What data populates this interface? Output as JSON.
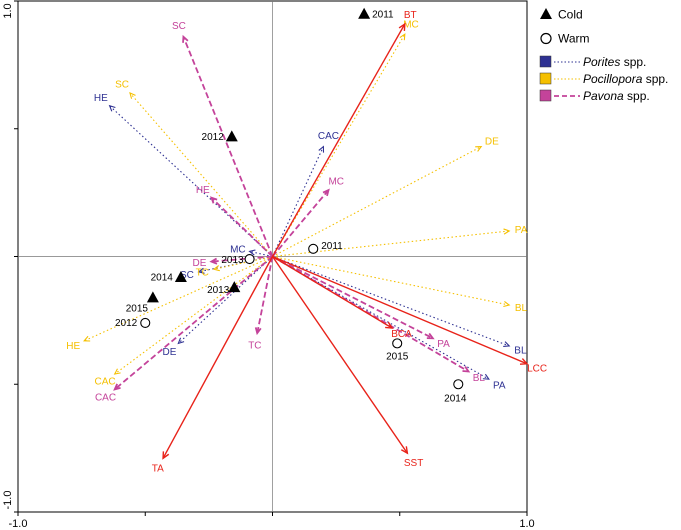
{
  "chart_data": {
    "type": "scatter",
    "title": "",
    "xlabel": "",
    "ylabel": "",
    "xlim": [
      -1.0,
      1.0
    ],
    "ylim": [
      -1.0,
      1.0
    ],
    "x_ticks": [
      "-1.0",
      "1.0"
    ],
    "y_ticks": [
      "1.0",
      "-1.0"
    ],
    "grid": false,
    "legend_position": "top-right",
    "legend": {
      "samples": [
        {
          "label": "Cold",
          "marker": "filled-triangle"
        },
        {
          "label": "Warm",
          "marker": "open-circle"
        }
      ],
      "series": [
        {
          "genus": "Porites",
          "suffix": " spp.",
          "color": "#2e3192",
          "line": "dotted"
        },
        {
          "genus": "Pocillopora",
          "suffix": " spp.",
          "color": "#f5c000",
          "line": "dotted"
        },
        {
          "genus": "Pavona",
          "suffix": " spp.",
          "color": "#c4439a",
          "line": "dashed"
        }
      ]
    },
    "environment_vectors": {
      "color": "#e8231a",
      "vectors": [
        {
          "label": "BT",
          "x": 0.52,
          "y": 0.91
        },
        {
          "label": "LCC",
          "x": 1.0,
          "y": -0.42
        },
        {
          "label": "BCA",
          "x": 0.47,
          "y": -0.28
        },
        {
          "label": "SST",
          "x": 0.53,
          "y": -0.77
        },
        {
          "label": "TA",
          "x": -0.43,
          "y": -0.79
        }
      ]
    },
    "series_vectors": [
      {
        "series": "Porites",
        "vectors": [
          {
            "label": "HE",
            "x": -0.64,
            "y": 0.59
          },
          {
            "label": "CAC",
            "x": 0.2,
            "y": 0.43
          },
          {
            "label": "MC",
            "x": -0.09,
            "y": 0.02
          },
          {
            "label": "SC",
            "x": -0.29,
            "y": -0.06
          },
          {
            "label": "DE",
            "x": -0.37,
            "y": -0.34
          },
          {
            "label": "BL",
            "x": 0.93,
            "y": -0.35
          },
          {
            "label": "PA",
            "x": 0.85,
            "y": -0.48
          }
        ]
      },
      {
        "series": "Pocillopora",
        "vectors": [
          {
            "label": "MC",
            "x": 0.52,
            "y": 0.87
          },
          {
            "label": "SC",
            "x": -0.56,
            "y": 0.64
          },
          {
            "label": "DE",
            "x": 0.82,
            "y": 0.43
          },
          {
            "label": "PA",
            "x": 0.93,
            "y": 0.1
          },
          {
            "label": "BL",
            "x": 0.93,
            "y": -0.19
          },
          {
            "label": "TC",
            "x": -0.23,
            "y": -0.05
          },
          {
            "label": "HE",
            "x": -0.74,
            "y": -0.33
          },
          {
            "label": "CAC",
            "x": -0.62,
            "y": -0.46
          }
        ]
      },
      {
        "series": "Pavona",
        "vectors": [
          {
            "label": "SC",
            "x": -0.35,
            "y": 0.86
          },
          {
            "label": "MC",
            "x": 0.22,
            "y": 0.26
          },
          {
            "label": "HE",
            "x": -0.24,
            "y": 0.23
          },
          {
            "label": "DE",
            "x": -0.24,
            "y": -0.02
          },
          {
            "label": "TC",
            "x": -0.06,
            "y": -0.3
          },
          {
            "label": "CAC",
            "x": -0.62,
            "y": -0.52
          },
          {
            "label": "PA",
            "x": 0.63,
            "y": -0.32
          },
          {
            "label": "BL",
            "x": 0.77,
            "y": -0.45
          }
        ]
      }
    ],
    "samples": [
      {
        "label": "2011",
        "group": "Cold",
        "x": 0.36,
        "y": 0.95
      },
      {
        "label": "2012",
        "group": "Cold",
        "x": -0.16,
        "y": 0.47
      },
      {
        "label": "2014",
        "group": "Cold",
        "x": -0.36,
        "y": -0.08
      },
      {
        "label": "2015",
        "group": "Cold",
        "x": -0.47,
        "y": -0.16
      },
      {
        "label": "2013",
        "group": "Cold",
        "x": -0.15,
        "y": -0.12
      },
      {
        "label": "2011",
        "group": "Warm",
        "x": 0.16,
        "y": 0.03
      },
      {
        "label": "2013",
        "group": "Warm",
        "x": -0.09,
        "y": -0.01
      },
      {
        "label": "2012",
        "group": "Warm",
        "x": -0.5,
        "y": -0.26
      },
      {
        "label": "2015",
        "group": "Warm",
        "x": 0.49,
        "y": -0.34
      },
      {
        "label": "2014",
        "group": "Warm",
        "x": 0.73,
        "y": -0.5
      }
    ]
  }
}
